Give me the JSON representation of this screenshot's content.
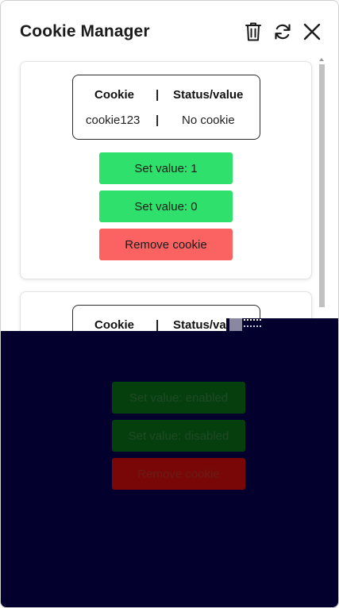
{
  "header": {
    "title": "Cookie Manager",
    "icons": {
      "trash": "trash-icon",
      "refresh": "refresh-icon",
      "close": "close-icon"
    }
  },
  "table": {
    "col_cookie": "Cookie",
    "separator": "|",
    "col_status": "Status/value"
  },
  "cards": [
    {
      "cookie": "cookie123",
      "status": "No cookie",
      "buttons": {
        "set_one": "Set value: 1",
        "set_zero": "Set value: 0",
        "remove": "Remove cookie"
      }
    },
    {
      "buttons": {
        "set_enabled": "Set value: enabled",
        "set_disabled": "Set value: disabled",
        "remove": "Remove cookie"
      }
    }
  ],
  "colors": {
    "green": "#2fe06c",
    "red": "#fb6362",
    "overlay": "#04002d",
    "overlay_green": "#063f0e",
    "overlay_red": "#7a0707"
  }
}
